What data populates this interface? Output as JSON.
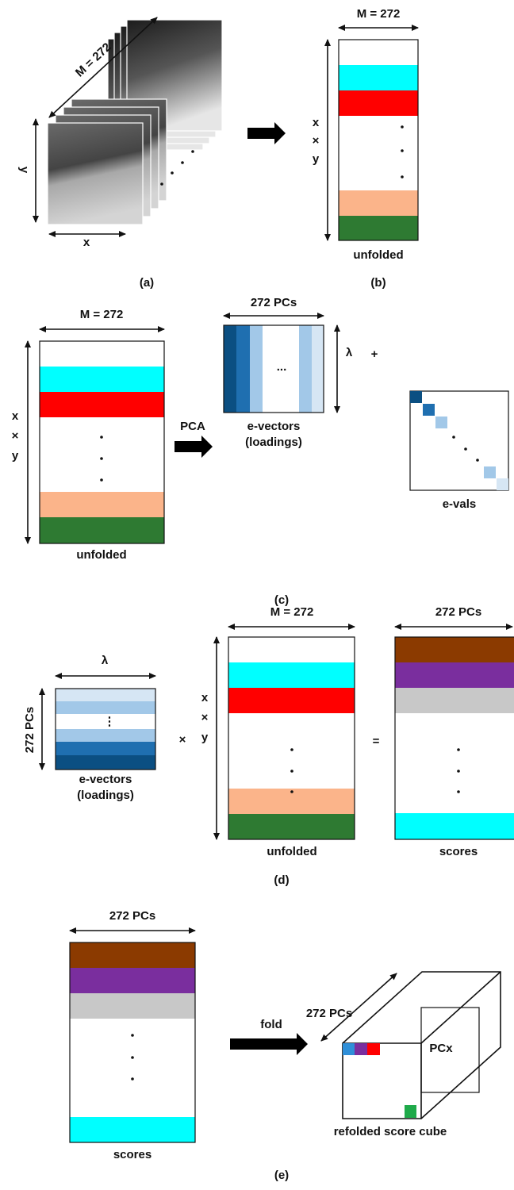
{
  "panel_a": {
    "depth_label": "M = 272",
    "y_label": "y",
    "x_label": "x",
    "caption": "(a)"
  },
  "panel_b": {
    "width_label": "M = 272",
    "height_label": [
      "x",
      "×",
      "y"
    ],
    "matrix_label": "unfolded",
    "caption": "(b)"
  },
  "panel_c": {
    "width_label": "M = 272",
    "height_label": [
      "x",
      "×",
      "y"
    ],
    "matrix_label": "unfolded",
    "arrow_label": "PCA",
    "loadings_width_label": "272 PCs",
    "loadings_ellipsis": "...",
    "loadings_height_label": "λ",
    "plus": "+",
    "loadings_label": [
      "e-vectors",
      "(loadings)"
    ],
    "evals_label": "e-vals",
    "caption": "(c)"
  },
  "panel_d": {
    "loadings_width_label": "λ",
    "loadings_height_label": "272 PCs",
    "loadings_ellipsis": "⋮",
    "loadings_label": [
      "e-vectors",
      "(loadings)"
    ],
    "times": "×",
    "width_label": "M = 272",
    "height_label": [
      "x",
      "×",
      "y"
    ],
    "matrix_label": "unfolded",
    "equals": "=",
    "scores_width_label": "272 PCs",
    "scores_label": "scores",
    "caption": "(d)"
  },
  "panel_e": {
    "scores_width_label": "272 PCs",
    "scores_label": "scores",
    "arrow_label": "fold",
    "cube_depth_label": "272 PCs",
    "slice_label": "PCx",
    "cube_label": "refolded score cube",
    "caption": "(e)"
  }
}
